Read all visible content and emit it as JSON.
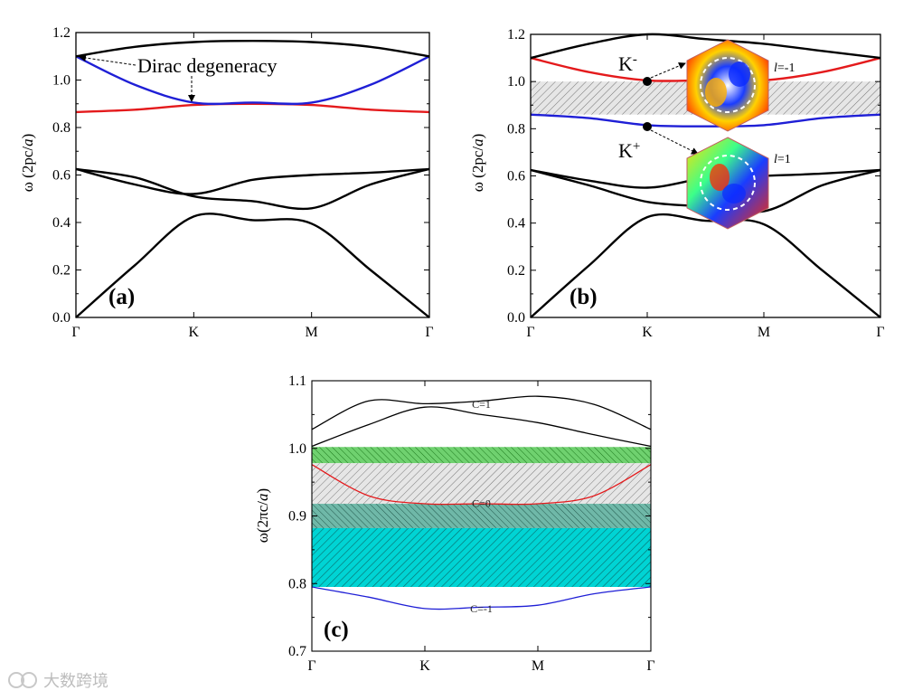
{
  "watermark": "大数跨境",
  "chart_data": [
    {
      "id": "a",
      "type": "line",
      "panel_label": "(a)",
      "ylabel_prefix": "ω (2pc/",
      "ylabel_italic": "a",
      "ylabel_suffix": ")",
      "ylim": [
        0.0,
        1.2
      ],
      "yticks": [
        "0.0",
        "0.2",
        "0.4",
        "0.6",
        "0.8",
        "1.0",
        "1.2"
      ],
      "ytick_values": [
        0.0,
        0.2,
        0.4,
        0.6,
        0.8,
        1.0,
        1.2
      ],
      "xlim": [
        0,
        3
      ],
      "xticks": [
        "Γ",
        "K",
        "M",
        "Γ"
      ],
      "xtick_values": [
        0,
        1,
        2,
        3
      ],
      "annotation": "Dirac degeneracy",
      "series": [
        {
          "name": "band1",
          "color": "#000000",
          "x": [
            0,
            0.5,
            1,
            1.5,
            2,
            2.5,
            3
          ],
          "y": [
            0.0,
            0.22,
            0.425,
            0.41,
            0.395,
            0.2,
            0.0
          ]
        },
        {
          "name": "band2",
          "color": "#000000",
          "x": [
            0,
            0.5,
            1,
            1.5,
            2,
            2.5,
            3
          ],
          "y": [
            0.625,
            0.59,
            0.51,
            0.49,
            0.46,
            0.56,
            0.625
          ]
        },
        {
          "name": "band3",
          "color": "#000000",
          "x": [
            0,
            0.5,
            1,
            1.5,
            2,
            2.5,
            3
          ],
          "y": [
            0.625,
            0.56,
            0.52,
            0.58,
            0.6,
            0.61,
            0.625
          ]
        },
        {
          "name": "band4",
          "color": "#e41a1c",
          "x": [
            0,
            0.5,
            1,
            1.5,
            2,
            2.5,
            3
          ],
          "y": [
            0.865,
            0.875,
            0.895,
            0.9,
            0.895,
            0.875,
            0.865
          ]
        },
        {
          "name": "band5",
          "color": "#1f1fd6",
          "x": [
            0,
            0.5,
            1,
            1.5,
            2,
            2.5,
            3
          ],
          "y": [
            1.1,
            0.98,
            0.905,
            0.905,
            0.905,
            0.98,
            1.1
          ]
        },
        {
          "name": "band6",
          "color": "#000000",
          "x": [
            0,
            0.5,
            1,
            1.5,
            2,
            2.5,
            3
          ],
          "y": [
            1.1,
            1.14,
            1.16,
            1.165,
            1.16,
            1.14,
            1.1
          ]
        }
      ]
    },
    {
      "id": "b",
      "type": "line",
      "panel_label": "(b)",
      "ylabel_prefix": "ω (2pc/",
      "ylabel_italic": "a",
      "ylabel_suffix": ")",
      "ylim": [
        0.0,
        1.2
      ],
      "yticks": [
        "0.0",
        "0.2",
        "0.4",
        "0.6",
        "0.8",
        "1.0",
        "1.2"
      ],
      "ytick_values": [
        0.0,
        0.2,
        0.4,
        0.6,
        0.8,
        1.0,
        1.2
      ],
      "xlim": [
        0,
        3
      ],
      "xticks": [
        "Γ",
        "K",
        "M",
        "Γ"
      ],
      "xtick_values": [
        0,
        1,
        2,
        3
      ],
      "gap": [
        0.86,
        1.0
      ],
      "label_k_minus": "K",
      "label_k_minus_sup": "-",
      "label_k_plus": "K",
      "label_k_plus_sup": "+",
      "label_l_minus": "=-1",
      "label_l_plus": "=1",
      "label_l_symbol": "l",
      "series": [
        {
          "name": "band1",
          "color": "#000000",
          "x": [
            0,
            0.5,
            1,
            1.5,
            2,
            2.5,
            3
          ],
          "y": [
            0.0,
            0.22,
            0.425,
            0.41,
            0.395,
            0.2,
            0.0
          ]
        },
        {
          "name": "band2",
          "color": "#000000",
          "x": [
            0,
            0.5,
            1,
            1.5,
            2,
            2.5,
            3
          ],
          "y": [
            0.625,
            0.58,
            0.55,
            0.59,
            0.6,
            0.61,
            0.625
          ]
        },
        {
          "name": "band3",
          "color": "#000000",
          "x": [
            0,
            0.5,
            1,
            1.5,
            2,
            2.5,
            3
          ],
          "y": [
            0.625,
            0.56,
            0.49,
            0.47,
            0.45,
            0.56,
            0.625
          ]
        },
        {
          "name": "band4",
          "color": "#1f1fd6",
          "x": [
            0,
            0.5,
            1,
            1.5,
            2,
            2.5,
            3
          ],
          "y": [
            0.86,
            0.845,
            0.815,
            0.81,
            0.815,
            0.845,
            0.86
          ]
        },
        {
          "name": "band5",
          "color": "#e41a1c",
          "x": [
            0,
            0.5,
            1,
            1.5,
            2,
            2.5,
            3
          ],
          "y": [
            1.1,
            1.04,
            1.005,
            1.005,
            1.005,
            1.04,
            1.1
          ]
        },
        {
          "name": "band6",
          "color": "#000000",
          "x": [
            0,
            0.5,
            1,
            1.5,
            2,
            2.5,
            3
          ],
          "y": [
            1.1,
            1.16,
            1.2,
            1.18,
            1.16,
            1.13,
            1.1
          ]
        }
      ]
    },
    {
      "id": "c",
      "type": "line",
      "panel_label": "(c)",
      "ylabel_prefix": "ω(2πc/",
      "ylabel_italic": "a",
      "ylabel_suffix": ")",
      "ylim": [
        0.7,
        1.1
      ],
      "yticks": [
        "0.7",
        "0.8",
        "0.9",
        "1.0",
        "1.1"
      ],
      "ytick_values": [
        0.7,
        0.8,
        0.9,
        1.0,
        1.1
      ],
      "xlim": [
        0,
        3
      ],
      "xticks": [
        "Γ",
        "K",
        "M",
        "Γ"
      ],
      "xtick_values": [
        0,
        1,
        2,
        3
      ],
      "gaps": [
        {
          "name": "green",
          "range": [
            0.978,
            1.002
          ],
          "color": "#2eaa2e"
        },
        {
          "name": "gray",
          "range": [
            0.918,
            0.978
          ],
          "color": "#999999"
        },
        {
          "name": "teal",
          "range": [
            0.882,
            0.918
          ],
          "color": "#3a8f7a"
        },
        {
          "name": "cyan",
          "range": [
            0.795,
            0.882
          ],
          "color": "#00c8c8"
        }
      ],
      "band_labels": [
        "C=1",
        "C=0",
        "C=-1"
      ],
      "band_label_y": [
        1.065,
        0.919,
        0.763
      ],
      "band_label_x": [
        1.5,
        1.5,
        1.5
      ],
      "series": [
        {
          "name": "band_low",
          "color": "#1f1fd6",
          "x": [
            0,
            0.5,
            1,
            1.5,
            2,
            2.5,
            3
          ],
          "y": [
            0.795,
            0.78,
            0.763,
            0.765,
            0.768,
            0.785,
            0.795
          ]
        },
        {
          "name": "band_mid",
          "color": "#e41a1c",
          "x": [
            0,
            0.5,
            1,
            1.5,
            2,
            2.5,
            3
          ],
          "y": [
            0.976,
            0.93,
            0.918,
            0.918,
            0.918,
            0.93,
            0.976
          ]
        },
        {
          "name": "band_up1",
          "color": "#000000",
          "x": [
            0,
            0.5,
            1,
            1.5,
            2,
            2.5,
            3
          ],
          "y": [
            1.003,
            1.035,
            1.061,
            1.05,
            1.038,
            1.02,
            1.003
          ]
        },
        {
          "name": "band_up2",
          "color": "#000000",
          "x": [
            0,
            0.5,
            1,
            1.5,
            2,
            2.5,
            3
          ],
          "y": [
            1.028,
            1.07,
            1.066,
            1.07,
            1.077,
            1.065,
            1.028
          ]
        }
      ]
    }
  ]
}
